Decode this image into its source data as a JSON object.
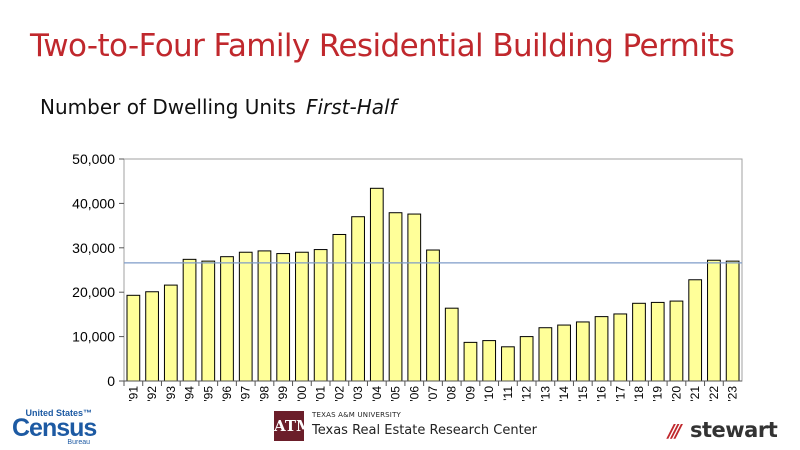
{
  "title": "Two-to-Four Family Residential Building Permits",
  "subtitle": {
    "main": "Number of Dwelling Units",
    "emphasis": "First-Half"
  },
  "chart_data": {
    "type": "bar",
    "categories": [
      "'91",
      "'92",
      "'93",
      "'94",
      "'95",
      "'96",
      "'97",
      "'98",
      "'99",
      "'00",
      "'01",
      "'02",
      "'03",
      "'04",
      "'05",
      "'06",
      "'07",
      "'08",
      "'09",
      "'10",
      "'11",
      "'12",
      "'13",
      "'14",
      "'15",
      "'16",
      "'17",
      "'18",
      "'19",
      "'20",
      "'21",
      "'22",
      "'23"
    ],
    "values": [
      19300,
      20100,
      21600,
      27400,
      27000,
      28000,
      29000,
      29300,
      28700,
      29000,
      29600,
      33000,
      37000,
      43400,
      37900,
      37600,
      29500,
      16400,
      8700,
      9100,
      7700,
      10000,
      12000,
      12600,
      13300,
      14500,
      15100,
      17500,
      17700,
      18000,
      22800,
      27200,
      27000
    ],
    "ylim": [
      0,
      50000
    ],
    "yticks": [
      "0",
      "10,000",
      "20,000",
      "30,000",
      "40,000",
      "50,000"
    ],
    "reference_line": 26600,
    "bar_color": "#ffff99",
    "bar_stroke": "#000000",
    "reference_line_color": "#7f9cc8",
    "grid": false
  },
  "logos": {
    "census": {
      "top": "United States™",
      "word": "Census",
      "bottom": "Bureau"
    },
    "tamu": {
      "mark": "ATM",
      "university": "TEXAS A&M UNIVERSITY",
      "center": "Texas Real Estate Research Center"
    },
    "stewart": {
      "mark": "///",
      "word": "stewart"
    }
  },
  "colors": {
    "title": "#c0282d",
    "census": "#1d5aa3",
    "tamu": "#6b1e2a"
  }
}
